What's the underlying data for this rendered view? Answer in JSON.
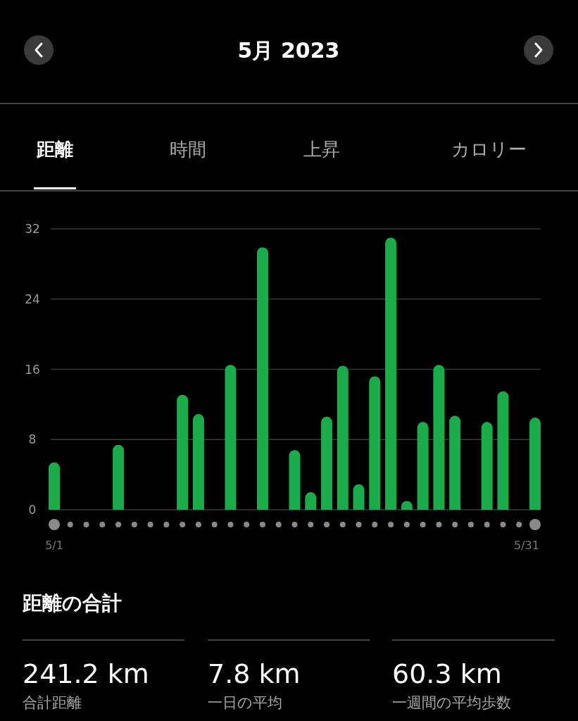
{
  "chart_data": {
    "type": "bar",
    "title": "5月 2023",
    "categories": [
      "5/1",
      null,
      null,
      null,
      null,
      null,
      null,
      null,
      null,
      null,
      null,
      null,
      null,
      null,
      null,
      null,
      null,
      null,
      null,
      null,
      null,
      null,
      null,
      null,
      null,
      null,
      null,
      null,
      null,
      null,
      "5/31"
    ],
    "values": [
      5.4,
      0,
      0,
      0,
      7.4,
      0,
      0,
      0,
      13.1,
      10.9,
      0,
      16.5,
      0,
      29.9,
      0,
      6.8,
      2.0,
      10.6,
      16.4,
      2.9,
      15.2,
      31.0,
      1.0,
      10.0,
      16.5,
      10.7,
      0,
      10.0,
      13.5,
      0,
      10.5
    ],
    "color": "#1aab4b",
    "ylim": [
      0,
      32
    ],
    "yticks": [
      0,
      8,
      16,
      24,
      32
    ],
    "grid": "y",
    "annotations": [
      "距離",
      "時間",
      "上昇",
      "カロリー",
      "距離の合計",
      "241.2 km",
      "合計距離",
      "7.8 km",
      "一日の平均",
      "60.3 km",
      "一週間の平均歩数"
    ]
  }
}
